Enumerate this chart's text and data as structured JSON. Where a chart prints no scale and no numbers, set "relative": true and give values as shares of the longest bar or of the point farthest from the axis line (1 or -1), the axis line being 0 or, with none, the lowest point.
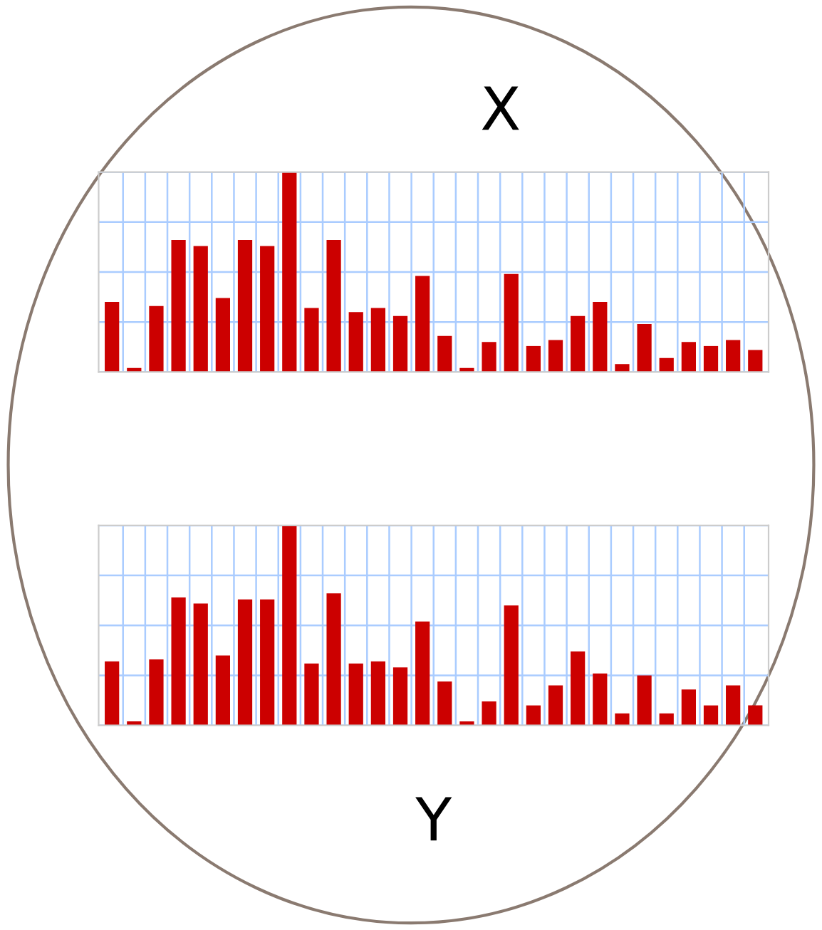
{
  "chart_data": [
    {
      "type": "bar",
      "title": "X",
      "relative": true,
      "grid": true,
      "categories": [
        null,
        null,
        null,
        null,
        null,
        null,
        null,
        null,
        null,
        null,
        null,
        null,
        null,
        null,
        null,
        null,
        null,
        null,
        null,
        null,
        null,
        null,
        null,
        null,
        null,
        null,
        null,
        null,
        null,
        null
      ],
      "series": [
        {
          "color": "#cc0000",
          "values": [
            0.35,
            0.02,
            0.33,
            0.66,
            0.63,
            0.37,
            0.66,
            0.63,
            1,
            0.32,
            0.66,
            0.3,
            0.32,
            0.28,
            0.48,
            0.18,
            0.02,
            0.15,
            0.49,
            0.13,
            0.16,
            0.28,
            0.35,
            0.04,
            0.24,
            0.07,
            0.15,
            0.13,
            0.16,
            0.11
          ]
        }
      ]
    },
    {
      "type": "bar",
      "title": "Y",
      "relative": true,
      "grid": true,
      "categories": [
        null,
        null,
        null,
        null,
        null,
        null,
        null,
        null,
        null,
        null,
        null,
        null,
        null,
        null,
        null,
        null,
        null,
        null,
        null,
        null,
        null,
        null,
        null,
        null,
        null,
        null,
        null,
        null,
        null,
        null
      ],
      "series": [
        {
          "color": "#cc0000",
          "values": [
            0.32,
            0.02,
            0.33,
            0.64,
            0.61,
            0.35,
            0.63,
            0.63,
            1,
            0.31,
            0.66,
            0.31,
            0.32,
            0.29,
            0.52,
            0.22,
            0.02,
            0.12,
            0.6,
            0.1,
            0.2,
            0.37,
            0.26,
            0.06,
            0.25,
            0.06,
            0.18,
            0.1,
            0.2,
            0.1
          ]
        }
      ]
    }
  ]
}
